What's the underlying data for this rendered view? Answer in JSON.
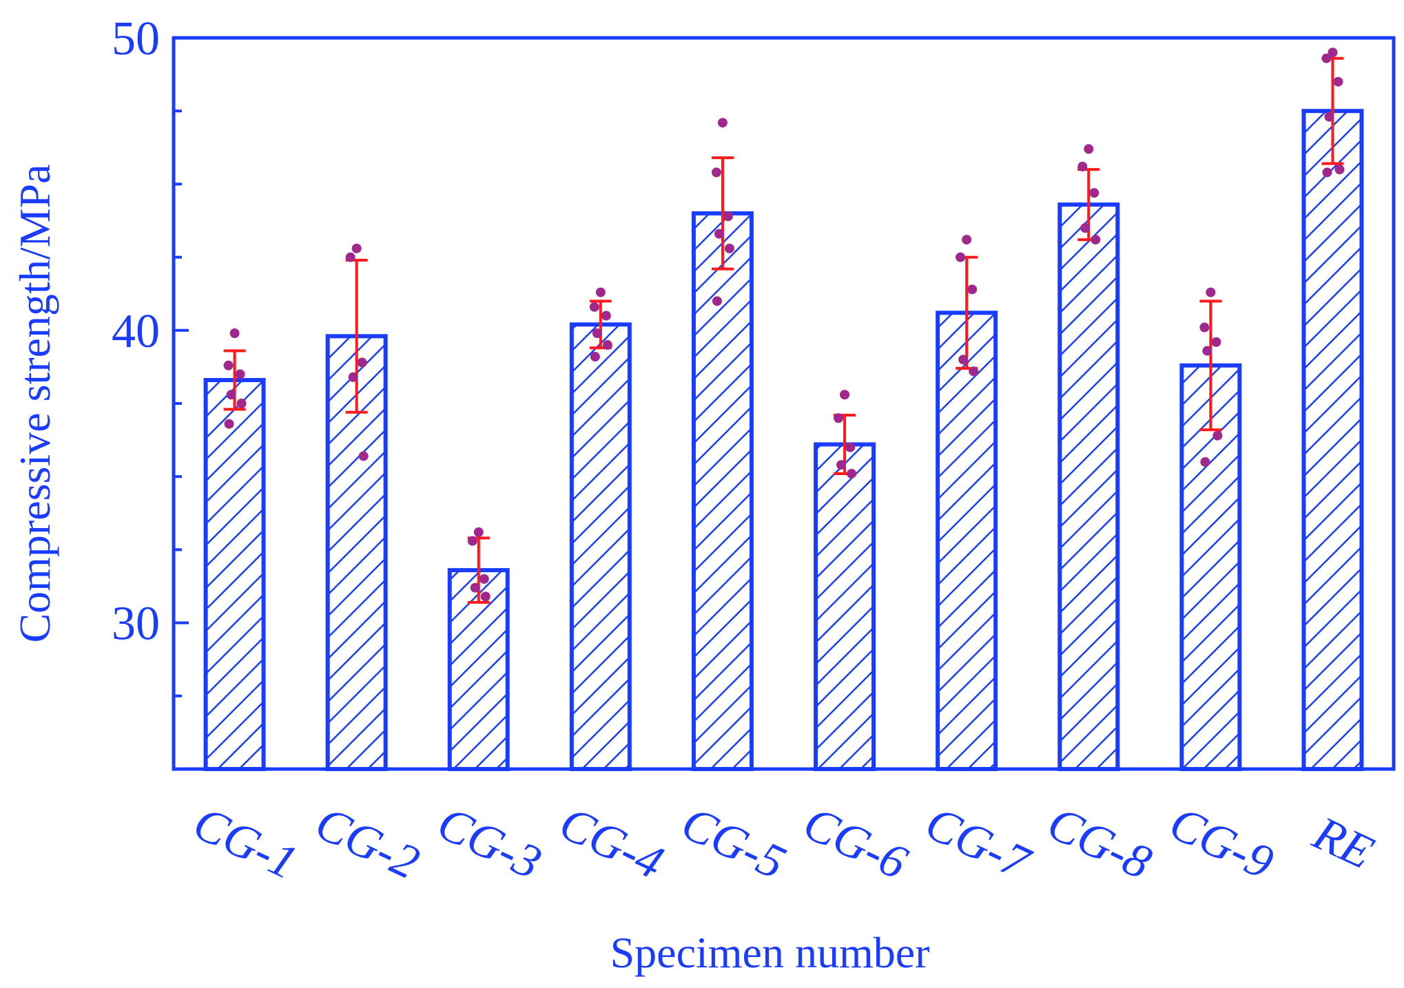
{
  "chart_data": {
    "type": "bar",
    "xlabel": "Specimen number",
    "ylabel": "Compressive strength/MPa",
    "ylim": [
      25,
      50
    ],
    "yticks": [
      30,
      40,
      50
    ],
    "categories": [
      "CG-1",
      "CG-2",
      "CG-3",
      "CG-4",
      "CG-5",
      "CG-6",
      "CG-7",
      "CG-8",
      "CG-9",
      "RE"
    ],
    "values": [
      38.3,
      39.8,
      31.8,
      40.2,
      44.0,
      36.1,
      40.6,
      44.3,
      38.8,
      47.5
    ],
    "error": [
      1.0,
      2.6,
      1.1,
      0.8,
      1.9,
      1.0,
      1.9,
      1.2,
      2.2,
      1.8
    ],
    "points": [
      [
        39.9,
        38.8,
        38.5,
        37.8,
        37.5,
        36.8
      ],
      [
        42.8,
        42.5,
        38.9,
        38.4,
        35.7
      ],
      [
        33.1,
        32.8,
        31.5,
        31.2,
        30.9
      ],
      [
        41.3,
        40.8,
        40.5,
        39.9,
        39.5,
        39.1
      ],
      [
        47.1,
        45.4,
        43.9,
        43.3,
        42.8,
        41.0
      ],
      [
        37.8,
        37.0,
        36.0,
        35.4,
        35.1
      ],
      [
        43.1,
        42.5,
        41.4,
        39.0,
        38.6
      ],
      [
        46.2,
        45.6,
        44.7,
        43.5,
        43.1
      ],
      [
        41.3,
        40.1,
        39.6,
        39.3,
        36.4,
        35.5
      ],
      [
        49.5,
        49.3,
        48.5,
        47.3,
        45.5,
        45.4
      ]
    ],
    "grid": false,
    "colors": {
      "axis": "#1a3cff",
      "bar": "#1a3cff",
      "error": "#ff1a1a",
      "point": "#a0288c"
    }
  }
}
